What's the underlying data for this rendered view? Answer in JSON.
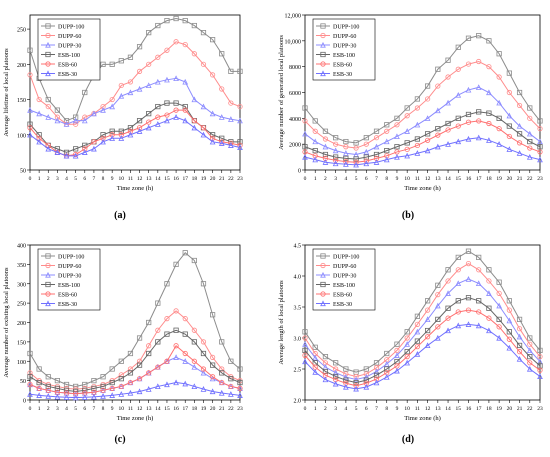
{
  "chart_data": [
    {
      "type": "line",
      "panel_label": "(a)",
      "title": "",
      "xlabel": "Time zone (h)",
      "ylabel": "Average lifetime of local platoons",
      "xlim": [
        0,
        23
      ],
      "ylim": [
        50,
        270
      ],
      "yticks": [
        50,
        100,
        150,
        200,
        250
      ],
      "grid": false,
      "legend": "top-left",
      "x": [
        0,
        1,
        2,
        3,
        4,
        5,
        6,
        7,
        8,
        9,
        10,
        11,
        12,
        13,
        14,
        15,
        16,
        17,
        18,
        19,
        20,
        21,
        22,
        23
      ],
      "series": [
        {
          "name": "DUPP-100",
          "color": "#8c8c8c",
          "marker": "square",
          "values": [
            220,
            180,
            150,
            135,
            120,
            125,
            160,
            185,
            200,
            200,
            205,
            210,
            225,
            245,
            255,
            262,
            265,
            262,
            255,
            245,
            235,
            215,
            190,
            190
          ]
        },
        {
          "name": "DUPP-60",
          "color": "#ff8c8c",
          "marker": "circle",
          "values": [
            185,
            150,
            140,
            125,
            115,
            115,
            125,
            130,
            140,
            150,
            170,
            175,
            190,
            200,
            210,
            220,
            232,
            228,
            215,
            200,
            185,
            165,
            145,
            140
          ]
        },
        {
          "name": "DUPP-30",
          "color": "#8c8cff",
          "marker": "triangle",
          "values": [
            135,
            130,
            125,
            120,
            115,
            120,
            120,
            130,
            135,
            140,
            155,
            160,
            165,
            170,
            175,
            178,
            180,
            175,
            150,
            140,
            130,
            125,
            122,
            120
          ]
        },
        {
          "name": "ESB-100",
          "color": "#666666",
          "marker": "square",
          "values": [
            115,
            100,
            85,
            80,
            75,
            80,
            85,
            90,
            100,
            105,
            105,
            110,
            120,
            130,
            140,
            145,
            145,
            140,
            120,
            110,
            100,
            95,
            90,
            90
          ]
        },
        {
          "name": "ESB-60",
          "color": "#ff7070",
          "marker": "circle",
          "values": [
            110,
            95,
            85,
            75,
            70,
            72,
            80,
            90,
            95,
            100,
            100,
            105,
            110,
            118,
            125,
            128,
            135,
            135,
            120,
            110,
            95,
            90,
            88,
            85
          ]
        },
        {
          "name": "ESB-30",
          "color": "#7070ff",
          "marker": "triangle",
          "values": [
            100,
            90,
            80,
            75,
            70,
            70,
            75,
            80,
            90,
            95,
            95,
            100,
            105,
            110,
            115,
            120,
            125,
            120,
            110,
            100,
            90,
            88,
            85,
            82
          ]
        }
      ]
    },
    {
      "type": "line",
      "panel_label": "(b)",
      "title": "",
      "xlabel": "Time zone (h)",
      "ylabel": "Average number of generated local platoons",
      "xlim": [
        0,
        23
      ],
      "ylim": [
        0,
        12000
      ],
      "yticks": [
        0,
        2000,
        4000,
        6000,
        8000,
        10000,
        12000
      ],
      "ytick_labels": [
        "0",
        "2000",
        "4000",
        "6000",
        "8000",
        "10,000",
        "12,000"
      ],
      "grid": false,
      "legend": "top-left",
      "x": [
        0,
        1,
        2,
        3,
        4,
        5,
        6,
        7,
        8,
        9,
        10,
        11,
        12,
        13,
        14,
        15,
        16,
        17,
        18,
        19,
        20,
        21,
        22,
        23
      ],
      "series": [
        {
          "name": "DUPP-100",
          "color": "#8c8c8c",
          "marker": "square",
          "values": [
            4800,
            3800,
            3000,
            2500,
            2200,
            2100,
            2500,
            3000,
            3500,
            4000,
            4800,
            5500,
            6500,
            7800,
            8500,
            9500,
            10200,
            10400,
            10000,
            9000,
            7500,
            6000,
            4800,
            3800
          ]
        },
        {
          "name": "DUPP-60",
          "color": "#ff8c8c",
          "marker": "circle",
          "values": [
            3800,
            3000,
            2400,
            2000,
            1800,
            1700,
            2000,
            2500,
            3000,
            3500,
            4200,
            4800,
            5500,
            6500,
            7200,
            7800,
            8200,
            8400,
            8000,
            7200,
            6000,
            5000,
            4000,
            3200
          ]
        },
        {
          "name": "DUPP-30",
          "color": "#8c8cff",
          "marker": "triangle",
          "values": [
            2800,
            2200,
            1800,
            1500,
            1300,
            1200,
            1400,
            1800,
            2200,
            2600,
            3000,
            3500,
            4000,
            4600,
            5200,
            5800,
            6200,
            6400,
            6000,
            5200,
            4200,
            3400,
            2800,
            2200
          ]
        },
        {
          "name": "ESB-100",
          "color": "#666666",
          "marker": "square",
          "values": [
            1800,
            1500,
            1200,
            1000,
            900,
            850,
            1000,
            1200,
            1500,
            1800,
            2100,
            2400,
            2800,
            3200,
            3600,
            4000,
            4300,
            4500,
            4400,
            4000,
            3400,
            2800,
            2200,
            1800
          ]
        },
        {
          "name": "ESB-60",
          "color": "#ff7070",
          "marker": "circle",
          "values": [
            1400,
            1100,
            900,
            750,
            650,
            600,
            700,
            900,
            1100,
            1400,
            1600,
            1900,
            2300,
            2700,
            3100,
            3400,
            3700,
            3800,
            3600,
            3200,
            2600,
            2100,
            1700,
            1400
          ]
        },
        {
          "name": "ESB-30",
          "color": "#7070ff",
          "marker": "triangle",
          "values": [
            1000,
            800,
            600,
            500,
            450,
            400,
            500,
            600,
            800,
            1000,
            1100,
            1300,
            1500,
            1800,
            2000,
            2200,
            2400,
            2500,
            2300,
            2000,
            1600,
            1300,
            1000,
            800
          ]
        }
      ]
    },
    {
      "type": "line",
      "panel_label": "(c)",
      "title": "",
      "xlabel": "Time zone (h)",
      "ylabel": "Average number of existing local platoons",
      "xlim": [
        0,
        23
      ],
      "ylim": [
        0,
        400
      ],
      "yticks": [
        0,
        50,
        100,
        150,
        200,
        250,
        300,
        350,
        400
      ],
      "grid": false,
      "legend": "top-left",
      "x": [
        0,
        1,
        2,
        3,
        4,
        5,
        6,
        7,
        8,
        9,
        10,
        11,
        12,
        13,
        14,
        15,
        16,
        17,
        18,
        19,
        20,
        21,
        22,
        23
      ],
      "series": [
        {
          "name": "DUPP-100",
          "color": "#8c8c8c",
          "marker": "square",
          "values": [
            120,
            80,
            60,
            50,
            40,
            35,
            40,
            50,
            60,
            80,
            100,
            120,
            160,
            200,
            250,
            300,
            350,
            380,
            360,
            300,
            220,
            150,
            100,
            80
          ]
        },
        {
          "name": "DUPP-60",
          "color": "#ff8c8c",
          "marker": "circle",
          "values": [
            70,
            50,
            40,
            35,
            30,
            28,
            30,
            35,
            40,
            50,
            65,
            80,
            100,
            140,
            180,
            210,
            230,
            210,
            180,
            150,
            110,
            80,
            60,
            50
          ]
        },
        {
          "name": "DUPP-30",
          "color": "#8c8cff",
          "marker": "triangle",
          "values": [
            40,
            30,
            25,
            20,
            18,
            16,
            18,
            20,
            25,
            30,
            35,
            45,
            55,
            70,
            85,
            100,
            110,
            100,
            85,
            70,
            55,
            45,
            35,
            30
          ]
        },
        {
          "name": "ESB-100",
          "color": "#666666",
          "marker": "square",
          "values": [
            60,
            45,
            35,
            30,
            25,
            22,
            25,
            30,
            35,
            45,
            55,
            70,
            90,
            120,
            150,
            170,
            180,
            170,
            150,
            120,
            90,
            70,
            55,
            45
          ]
        },
        {
          "name": "ESB-60",
          "color": "#ff7070",
          "marker": "circle",
          "values": [
            40,
            30,
            25,
            20,
            18,
            16,
            18,
            20,
            25,
            30,
            35,
            45,
            55,
            70,
            85,
            100,
            140,
            120,
            100,
            80,
            60,
            45,
            35,
            30
          ]
        },
        {
          "name": "ESB-30",
          "color": "#7070ff",
          "marker": "triangle",
          "values": [
            15,
            12,
            10,
            8,
            7,
            6,
            7,
            8,
            10,
            12,
            15,
            18,
            22,
            28,
            35,
            40,
            45,
            42,
            35,
            28,
            22,
            18,
            15,
            12
          ]
        }
      ]
    },
    {
      "type": "line",
      "panel_label": "(d)",
      "title": "",
      "xlabel": "Time zone (h)",
      "ylabel": "Average length of local platoons",
      "xlim": [
        0,
        23
      ],
      "ylim": [
        2.0,
        4.5
      ],
      "yticks": [
        2.0,
        2.5,
        3.0,
        3.5,
        4.0,
        4.5
      ],
      "ytick_labels": [
        "2.0",
        "2.5",
        "3.0",
        "3.5",
        "4.0",
        "4.5"
      ],
      "grid": false,
      "legend": "top-left",
      "x": [
        0,
        1,
        2,
        3,
        4,
        5,
        6,
        7,
        8,
        9,
        10,
        11,
        12,
        13,
        14,
        15,
        16,
        17,
        18,
        19,
        20,
        21,
        22,
        23
      ],
      "series": [
        {
          "name": "DUPP-100",
          "color": "#8c8c8c",
          "marker": "square",
          "values": [
            3.1,
            2.85,
            2.7,
            2.6,
            2.5,
            2.45,
            2.5,
            2.6,
            2.75,
            2.9,
            3.1,
            3.35,
            3.6,
            3.85,
            4.1,
            4.3,
            4.4,
            4.3,
            4.1,
            3.9,
            3.6,
            3.3,
            3.0,
            2.8
          ]
        },
        {
          "name": "DUPP-60",
          "color": "#ff8c8c",
          "marker": "circle",
          "values": [
            3.0,
            2.75,
            2.6,
            2.5,
            2.42,
            2.38,
            2.42,
            2.52,
            2.65,
            2.8,
            3.0,
            3.22,
            3.45,
            3.7,
            3.92,
            4.1,
            4.2,
            4.1,
            3.92,
            3.72,
            3.45,
            3.15,
            2.9,
            2.7
          ]
        },
        {
          "name": "DUPP-30",
          "color": "#8c8cff",
          "marker": "triangle",
          "values": [
            2.9,
            2.68,
            2.53,
            2.44,
            2.37,
            2.33,
            2.37,
            2.46,
            2.58,
            2.72,
            2.9,
            3.1,
            3.3,
            3.52,
            3.72,
            3.88,
            3.95,
            3.88,
            3.72,
            3.52,
            3.28,
            3.02,
            2.8,
            2.62
          ]
        },
        {
          "name": "ESB-100",
          "color": "#666666",
          "marker": "square",
          "values": [
            2.8,
            2.6,
            2.46,
            2.38,
            2.32,
            2.28,
            2.32,
            2.4,
            2.5,
            2.62,
            2.78,
            2.95,
            3.12,
            3.3,
            3.48,
            3.6,
            3.65,
            3.6,
            3.48,
            3.3,
            3.1,
            2.88,
            2.7,
            2.55
          ]
        },
        {
          "name": "ESB-60",
          "color": "#ff7070",
          "marker": "circle",
          "values": [
            2.72,
            2.53,
            2.4,
            2.33,
            2.27,
            2.23,
            2.27,
            2.34,
            2.44,
            2.55,
            2.7,
            2.86,
            3.02,
            3.18,
            3.32,
            3.42,
            3.45,
            3.42,
            3.32,
            3.18,
            2.98,
            2.78,
            2.6,
            2.48
          ]
        },
        {
          "name": "ESB-30",
          "color": "#7070ff",
          "marker": "triangle",
          "values": [
            2.62,
            2.45,
            2.33,
            2.26,
            2.21,
            2.18,
            2.21,
            2.28,
            2.37,
            2.47,
            2.6,
            2.74,
            2.88,
            3.0,
            3.12,
            3.2,
            3.22,
            3.2,
            3.12,
            3.0,
            2.84,
            2.66,
            2.5,
            2.38
          ]
        }
      ]
    }
  ]
}
